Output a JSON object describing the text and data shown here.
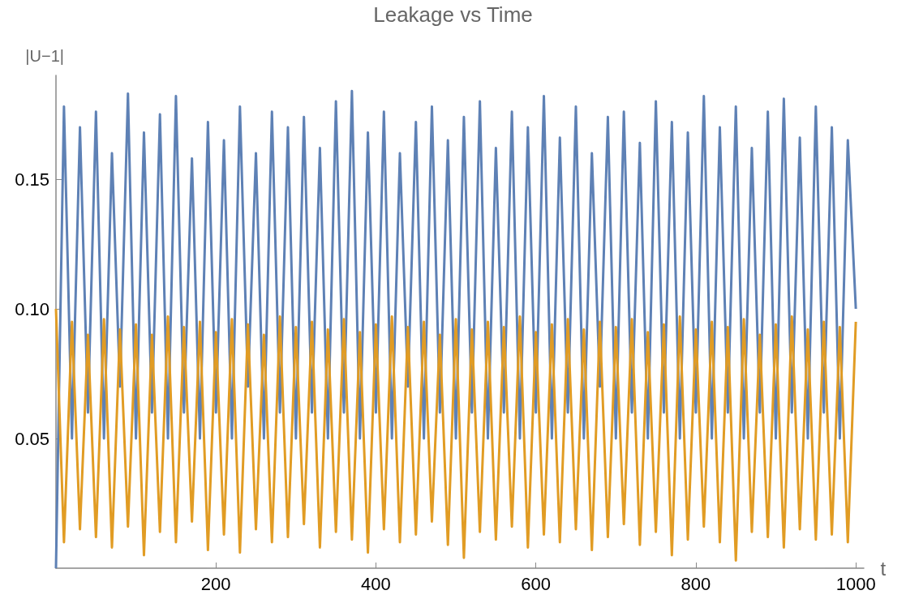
{
  "chart_data": {
    "type": "line",
    "title": "Leakage vs Time",
    "xlabel": "t",
    "ylabel": "|U−1|",
    "xlim": [
      0,
      1010
    ],
    "ylim": [
      0,
      0.19
    ],
    "xticks": [
      200,
      400,
      600,
      800,
      1000
    ],
    "yticks": [
      0.05,
      {
        "value": 0.1,
        "label": "0.10"
      },
      0.15
    ],
    "marker": "none",
    "line_style": "solid",
    "series": [
      {
        "color": "#5e81b5",
        "x": [
          0,
          10,
          20,
          30,
          40,
          50,
          60,
          70,
          80,
          90,
          100,
          110,
          120,
          130,
          140,
          150,
          160,
          170,
          180,
          190,
          200,
          210,
          220,
          230,
          240,
          250,
          260,
          270,
          280,
          290,
          300,
          310,
          320,
          330,
          340,
          350,
          360,
          370,
          380,
          390,
          400,
          410,
          420,
          430,
          440,
          450,
          460,
          470,
          480,
          490,
          500,
          510,
          520,
          530,
          540,
          550,
          560,
          570,
          580,
          590,
          600,
          610,
          620,
          630,
          640,
          650,
          660,
          670,
          680,
          690,
          700,
          710,
          720,
          730,
          740,
          750,
          760,
          770,
          780,
          790,
          800,
          810,
          820,
          830,
          840,
          850,
          860,
          870,
          880,
          890,
          900,
          910,
          920,
          930,
          940,
          950,
          960,
          970,
          980,
          990,
          1000
        ],
        "values": [
          0,
          0.178,
          0.05,
          0.17,
          0.06,
          0.176,
          0.05,
          0.16,
          0.07,
          0.183,
          0.05,
          0.168,
          0.06,
          0.175,
          0.05,
          0.182,
          0.06,
          0.158,
          0.05,
          0.172,
          0.06,
          0.165,
          0.05,
          0.178,
          0.07,
          0.16,
          0.05,
          0.176,
          0.06,
          0.17,
          0.05,
          0.174,
          0.06,
          0.162,
          0.05,
          0.18,
          0.06,
          0.184,
          0.05,
          0.168,
          0.06,
          0.176,
          0.05,
          0.16,
          0.07,
          0.172,
          0.05,
          0.178,
          0.06,
          0.165,
          0.05,
          0.174,
          0.06,
          0.18,
          0.05,
          0.162,
          0.06,
          0.176,
          0.05,
          0.17,
          0.06,
          0.182,
          0.05,
          0.166,
          0.06,
          0.178,
          0.05,
          0.16,
          0.07,
          0.174,
          0.05,
          0.176,
          0.06,
          0.164,
          0.05,
          0.18,
          0.06,
          0.172,
          0.05,
          0.168,
          0.06,
          0.182,
          0.05,
          0.17,
          0.06,
          0.178,
          0.05,
          0.162,
          0.06,
          0.176,
          0.05,
          0.181,
          0.06,
          0.166,
          0.05,
          0.178,
          0.06,
          0.17,
          0.05,
          0.165,
          0.1
        ]
      },
      {
        "color": "#e19c24",
        "x": [
          0,
          10,
          20,
          30,
          40,
          50,
          60,
          70,
          80,
          90,
          100,
          110,
          120,
          130,
          140,
          150,
          160,
          170,
          180,
          190,
          200,
          210,
          220,
          230,
          240,
          250,
          260,
          270,
          280,
          290,
          300,
          310,
          320,
          330,
          340,
          350,
          360,
          370,
          380,
          390,
          400,
          410,
          420,
          430,
          440,
          450,
          460,
          470,
          480,
          490,
          500,
          510,
          520,
          530,
          540,
          550,
          560,
          570,
          580,
          590,
          600,
          610,
          620,
          630,
          640,
          650,
          660,
          670,
          680,
          690,
          700,
          710,
          720,
          730,
          740,
          750,
          760,
          770,
          780,
          790,
          800,
          810,
          820,
          830,
          840,
          850,
          860,
          870,
          880,
          890,
          900,
          910,
          920,
          930,
          940,
          950,
          960,
          970,
          980,
          990,
          1000
        ],
        "values": [
          0.1,
          0.01,
          0.095,
          0.015,
          0.09,
          0.012,
          0.096,
          0.008,
          0.092,
          0.016,
          0.094,
          0.005,
          0.09,
          0.014,
          0.097,
          0.01,
          0.093,
          0.018,
          0.095,
          0.007,
          0.091,
          0.013,
          0.096,
          0.006,
          0.094,
          0.015,
          0.09,
          0.01,
          0.097,
          0.012,
          0.093,
          0.017,
          0.095,
          0.008,
          0.092,
          0.014,
          0.096,
          0.011,
          0.091,
          0.006,
          0.094,
          0.015,
          0.097,
          0.01,
          0.093,
          0.013,
          0.095,
          0.018,
          0.09,
          0.009,
          0.096,
          0.004,
          0.092,
          0.014,
          0.095,
          0.011,
          0.093,
          0.016,
          0.097,
          0.008,
          0.091,
          0.013,
          0.094,
          0.01,
          0.096,
          0.015,
          0.092,
          0.007,
          0.095,
          0.012,
          0.093,
          0.017,
          0.096,
          0.009,
          0.091,
          0.014,
          0.094,
          0.005,
          0.097,
          0.011,
          0.092,
          0.016,
          0.095,
          0.01,
          0.093,
          0.003,
          0.096,
          0.014,
          0.09,
          0.012,
          0.094,
          0.008,
          0.097,
          0.015,
          0.092,
          0.011,
          0.095,
          0.013,
          0.093,
          0.01,
          0.095
        ]
      }
    ]
  }
}
